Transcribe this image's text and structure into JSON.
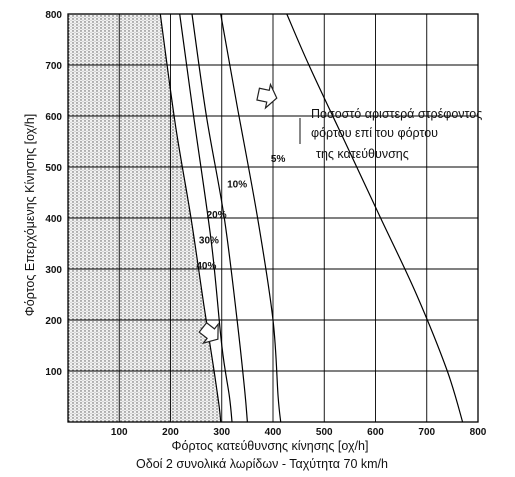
{
  "chart_data": {
    "type": "line",
    "title": "",
    "xlabel": "Φόρτος κατεύθυνσης κίνησης [οχ/h]",
    "subtitle": "Οδοί 2 συνολικά λωρίδων - Ταχύτητα 70 km/h",
    "ylabel": "Φόρτος Επερχόμενης Κίνησης [οχ/h]",
    "xlim": [
      0,
      800
    ],
    "ylim": [
      0,
      800
    ],
    "x_ticks": [
      "100",
      "200",
      "300",
      "400",
      "500",
      "600",
      "700",
      "800"
    ],
    "y_ticks": [
      "100",
      "200",
      "300",
      "400",
      "500",
      "600",
      "700",
      "800"
    ],
    "grid": true,
    "shaded_region_note": "dotted region at left of the 40% curve",
    "annotation": {
      "lines": [
        "Ποσοστό αριστερά στρέφοντος",
        "φόρτου επί του φόρτου",
        "της κατεύθυνσης"
      ]
    },
    "series": [
      {
        "name": "5%",
        "x": [
          427,
          470,
          540,
          610,
          680,
          740,
          770
        ],
        "y": [
          800,
          700,
          550,
          400,
          250,
          100,
          0
        ]
      },
      {
        "name": "10%",
        "x": [
          298,
          330,
          370,
          400,
          410,
          415
        ],
        "y": [
          800,
          620,
          400,
          200,
          50,
          0
        ]
      },
      {
        "name": "20%",
        "x": [
          242,
          270,
          305,
          330,
          345,
          350
        ],
        "y": [
          800,
          600,
          400,
          200,
          60,
          0
        ]
      },
      {
        "name": "30%",
        "x": [
          218,
          245,
          280,
          300,
          315,
          320
        ],
        "y": [
          800,
          600,
          350,
          150,
          50,
          0
        ]
      },
      {
        "name": "40%",
        "x": [
          180,
          210,
          240,
          265,
          285,
          295,
          298
        ],
        "y": [
          800,
          580,
          400,
          230,
          100,
          30,
          0
        ]
      }
    ],
    "curve_labels": [
      {
        "text": "5%",
        "x": 410,
        "y": 510
      },
      {
        "text": "10%",
        "x": 330,
        "y": 460
      },
      {
        "text": "20%",
        "x": 290,
        "y": 400
      },
      {
        "text": "30%",
        "x": 275,
        "y": 350
      },
      {
        "text": "40%",
        "x": 270,
        "y": 300
      }
    ]
  }
}
